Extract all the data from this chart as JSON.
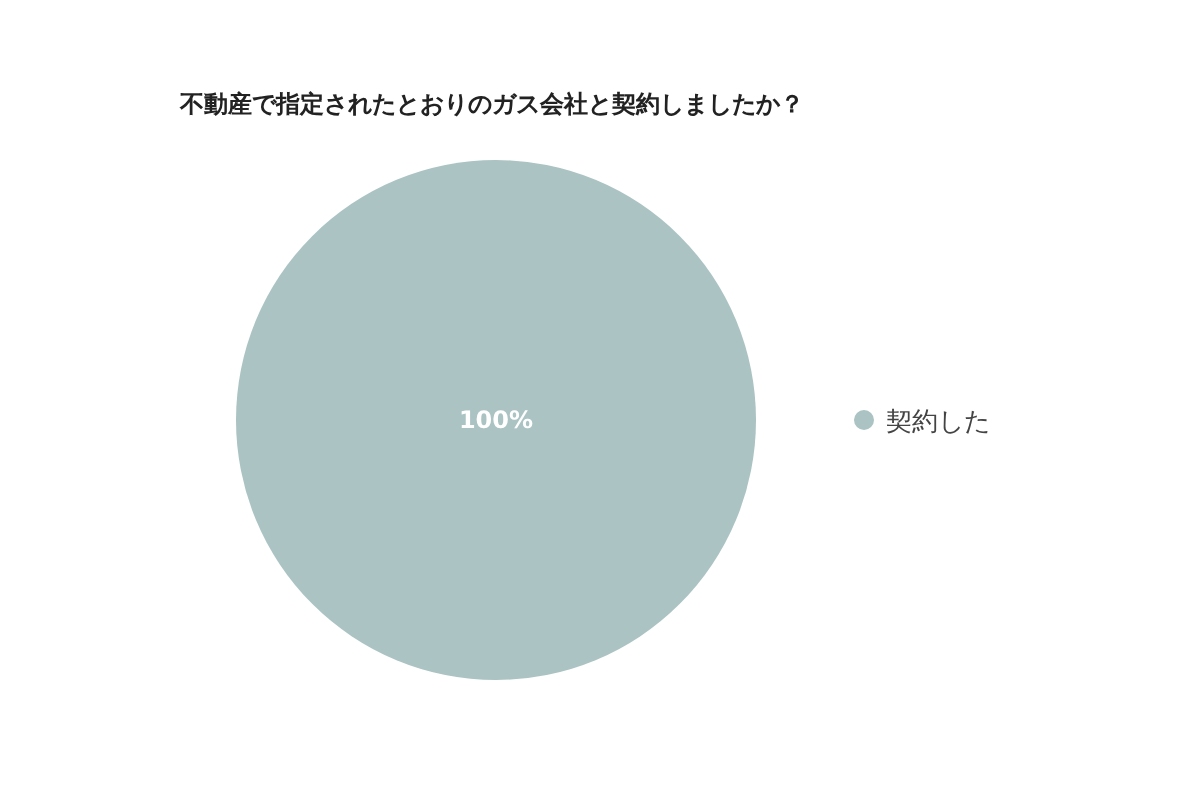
{
  "chart_data": {
    "type": "pie",
    "title": "不動産で指定されたとおりのガス会社と契約しましたか？",
    "categories": [
      "契約した"
    ],
    "values": [
      100
    ],
    "value_labels": [
      "100%"
    ],
    "colors": [
      "#abc3c3"
    ],
    "legend": "right"
  }
}
